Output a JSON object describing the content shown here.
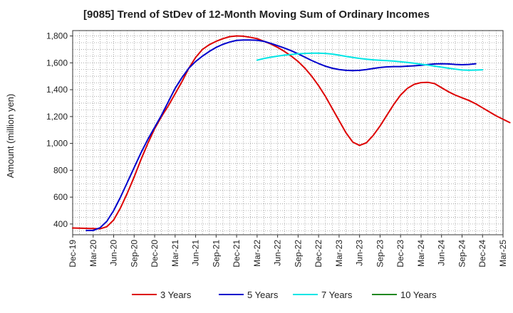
{
  "chart_data": {
    "type": "line",
    "title": "[9085]  Trend of StDev of 12-Month Moving Sum of Ordinary Incomes",
    "xlabel": "",
    "ylabel": "Amount (million yen)",
    "ylim": [
      320,
      1840
    ],
    "yticks": [
      400,
      600,
      800,
      1000,
      1200,
      1400,
      1600,
      1800
    ],
    "ytick_labels": [
      "400",
      "600",
      "800",
      "1,000",
      "1,200",
      "1,400",
      "1,600",
      "1,800"
    ],
    "x_tick_labels": [
      "Dec-19",
      "Mar-20",
      "Jun-20",
      "Sep-20",
      "Dec-20",
      "Mar-21",
      "Jun-21",
      "Sep-21",
      "Dec-21",
      "Mar-22",
      "Jun-22",
      "Sep-22",
      "Dec-22",
      "Mar-23",
      "Jun-23",
      "Sep-23",
      "Dec-23",
      "Mar-24",
      "Jun-24",
      "Sep-24",
      "Dec-24",
      "Mar-25"
    ],
    "grid": true,
    "legend_position": "bottom",
    "series": [
      {
        "name": "3 Years",
        "color": "#dd0000",
        "start_index": 0,
        "values": [
          370,
          369,
          368,
          366,
          364,
          380,
          430,
          520,
          630,
          750,
          880,
          1000,
          1110,
          1200,
          1280,
          1370,
          1460,
          1560,
          1640,
          1700,
          1735,
          1760,
          1780,
          1795,
          1800,
          1798,
          1790,
          1780,
          1760,
          1740,
          1715,
          1685,
          1650,
          1610,
          1560,
          1500,
          1430,
          1350,
          1260,
          1170,
          1080,
          1010,
          985,
          1005,
          1060,
          1130,
          1210,
          1290,
          1360,
          1410,
          1440,
          1453,
          1455,
          1445,
          1415,
          1385,
          1360,
          1340,
          1320,
          1295,
          1265,
          1235,
          1205,
          1180,
          1155
        ]
      },
      {
        "name": "5 Years",
        "color": "#0000cc",
        "start_index": 2,
        "values": [
          352,
          352,
          372,
          420,
          500,
          600,
          710,
          820,
          930,
          1030,
          1120,
          1210,
          1310,
          1410,
          1490,
          1560,
          1610,
          1650,
          1685,
          1715,
          1738,
          1755,
          1767,
          1770,
          1770,
          1768,
          1760,
          1745,
          1728,
          1710,
          1690,
          1667,
          1642,
          1617,
          1595,
          1575,
          1560,
          1550,
          1544,
          1542,
          1544,
          1550,
          1558,
          1565,
          1570,
          1572,
          1572,
          1575,
          1578,
          1582,
          1587,
          1592,
          1593,
          1592,
          1588,
          1586,
          1588,
          1593
        ]
      },
      {
        "name": "7 Years",
        "color": "#00e5e5",
        "start_index": 27,
        "values": [
          1620,
          1632,
          1642,
          1650,
          1657,
          1662,
          1667,
          1670,
          1672,
          1672,
          1670,
          1665,
          1657,
          1648,
          1640,
          1633,
          1627,
          1622,
          1619,
          1616,
          1613,
          1608,
          1603,
          1597,
          1590,
          1583,
          1575,
          1568,
          1560,
          1553,
          1547,
          1545,
          1546,
          1548
        ]
      },
      {
        "name": "10 Years",
        "color": "#228822",
        "start_index": 0,
        "values": []
      }
    ]
  }
}
